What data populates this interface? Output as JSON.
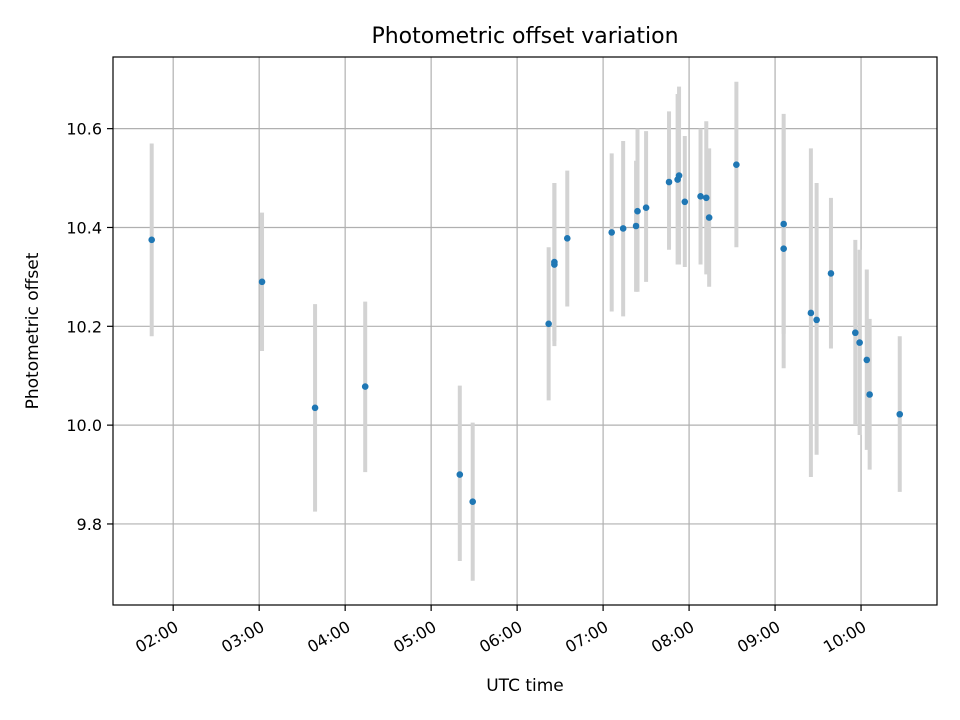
{
  "chart_data": {
    "type": "scatter",
    "title": "Photometric offset variation",
    "xlabel": "UTC time",
    "ylabel": "Photometric offset",
    "x_ticks": [
      "02:00",
      "03:00",
      "04:00",
      "05:00",
      "06:00",
      "07:00",
      "08:00",
      "09:00",
      "10:00"
    ],
    "y_ticks": [
      "9.8",
      "10.0",
      "10.2",
      "10.4",
      "10.6"
    ],
    "xlim": [
      "01:18",
      "10:53"
    ],
    "ylim": [
      9.636,
      10.745
    ],
    "grid": true,
    "point_color": "#1f77b4",
    "errorbar_color": "#d3d3d3",
    "points": [
      {
        "t": "01:45",
        "y": 10.375,
        "lo": 10.18,
        "hi": 10.57
      },
      {
        "t": "03:02",
        "y": 10.29,
        "lo": 10.15,
        "hi": 10.43
      },
      {
        "t": "03:39",
        "y": 10.035,
        "lo": 9.825,
        "hi": 10.245
      },
      {
        "t": "04:14",
        "y": 10.078,
        "lo": 9.905,
        "hi": 10.25
      },
      {
        "t": "05:20",
        "y": 9.9,
        "lo": 9.725,
        "hi": 10.08
      },
      {
        "t": "05:29",
        "y": 9.845,
        "lo": 9.685,
        "hi": 10.005
      },
      {
        "t": "06:22",
        "y": 10.205,
        "lo": 10.05,
        "hi": 10.36
      },
      {
        "t": "06:26",
        "y": 10.325,
        "lo": 10.16,
        "hi": 10.49
      },
      {
        "t": "06:26",
        "y": 10.33,
        "lo": 10.17,
        "hi": 10.49
      },
      {
        "t": "06:35",
        "y": 10.378,
        "lo": 10.24,
        "hi": 10.515
      },
      {
        "t": "07:06",
        "y": 10.39,
        "lo": 10.23,
        "hi": 10.55
      },
      {
        "t": "07:14",
        "y": 10.398,
        "lo": 10.22,
        "hi": 10.575
      },
      {
        "t": "07:23",
        "y": 10.403,
        "lo": 10.27,
        "hi": 10.535
      },
      {
        "t": "07:24",
        "y": 10.433,
        "lo": 10.27,
        "hi": 10.6
      },
      {
        "t": "07:30",
        "y": 10.44,
        "lo": 10.29,
        "hi": 10.595
      },
      {
        "t": "07:46",
        "y": 10.492,
        "lo": 10.355,
        "hi": 10.635
      },
      {
        "t": "07:52",
        "y": 10.497,
        "lo": 10.325,
        "hi": 10.67
      },
      {
        "t": "07:53",
        "y": 10.505,
        "lo": 10.325,
        "hi": 10.685
      },
      {
        "t": "07:57",
        "y": 10.452,
        "lo": 10.32,
        "hi": 10.585
      },
      {
        "t": "08:08",
        "y": 10.463,
        "lo": 10.325,
        "hi": 10.6
      },
      {
        "t": "08:12",
        "y": 10.46,
        "lo": 10.305,
        "hi": 10.615
      },
      {
        "t": "08:14",
        "y": 10.42,
        "lo": 10.28,
        "hi": 10.56
      },
      {
        "t": "08:33",
        "y": 10.527,
        "lo": 10.36,
        "hi": 10.695
      },
      {
        "t": "09:06",
        "y": 10.407,
        "lo": 10.185,
        "hi": 10.63
      },
      {
        "t": "09:06",
        "y": 10.357,
        "lo": 10.115,
        "hi": 10.6
      },
      {
        "t": "09:25",
        "y": 10.227,
        "lo": 9.895,
        "hi": 10.56
      },
      {
        "t": "09:29",
        "y": 10.213,
        "lo": 9.94,
        "hi": 10.49
      },
      {
        "t": "09:39",
        "y": 10.307,
        "lo": 10.155,
        "hi": 10.46
      },
      {
        "t": "09:56",
        "y": 10.187,
        "lo": 10.0,
        "hi": 10.375
      },
      {
        "t": "09:59",
        "y": 10.167,
        "lo": 9.98,
        "hi": 10.355
      },
      {
        "t": "10:04",
        "y": 10.132,
        "lo": 9.95,
        "hi": 10.315
      },
      {
        "t": "10:06",
        "y": 10.062,
        "lo": 9.91,
        "hi": 10.215
      },
      {
        "t": "10:27",
        "y": 10.022,
        "lo": 9.865,
        "hi": 10.18
      }
    ]
  }
}
